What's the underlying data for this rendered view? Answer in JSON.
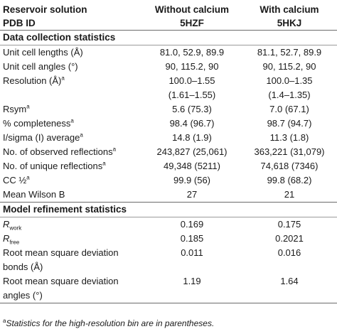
{
  "header": {
    "row1": {
      "label": "Reservoir solution",
      "col1": "Without calcium",
      "col2": "With calcium"
    },
    "row2": {
      "label": "PDB ID",
      "col1": "5HZF",
      "col2": "5HKJ"
    }
  },
  "sections": {
    "data_collection": "Data collection statistics",
    "refinement": "Model refinement statistics"
  },
  "rows": {
    "cell_lengths": {
      "label": "Unit cell lengths (Å)",
      "v1": "81.0, 52.9, 89.9",
      "v2": "81.1, 52.7, 89.9"
    },
    "cell_angles": {
      "label": "Unit cell angles (°)",
      "v1": "90, 115.2, 90",
      "v2": "90, 115.2, 90"
    },
    "resolution": {
      "label": "Resolution (Å)",
      "sup": "a",
      "v1": "100.0–1.55",
      "v1b": "(1.61–1.55)",
      "v2": "100.0–1.35",
      "v2b": "(1.4–1.35)"
    },
    "rsym": {
      "label": "Rsym",
      "sup": "a",
      "v1": "5.6 (75.3)",
      "v2": "7.0 (67.1)"
    },
    "completeness": {
      "label": "% completeness",
      "sup": "a",
      "v1": "98.4 (96.7)",
      "v2": "98.7 (94.7)"
    },
    "isigma": {
      "label": "I/sigma (I) average",
      "sup": "a",
      "v1": "14.8 (1.9)",
      "v2": "11.3 (1.8)"
    },
    "observed": {
      "label": "No. of observed reflections",
      "sup": "a",
      "v1": "243,827 (25,061)",
      "v2": "363,221 (31,079)"
    },
    "unique": {
      "label": "No. of unique reflections",
      "sup": "a",
      "v1": "49,348 (5211)",
      "v2": "74,618 (7346)"
    },
    "cc_half": {
      "label": "CC ½",
      "sup": "a",
      "v1": "99.9 (56)",
      "v2": "99.8 (68.2)"
    },
    "wilson": {
      "label": "Mean Wilson B",
      "v1": "27",
      "v2": "21"
    },
    "rwork": {
      "label": "R",
      "sub": "work",
      "v1": "0.169",
      "v2": "0.175"
    },
    "rfree": {
      "label": "R",
      "sub": "free",
      "v1": "0.185",
      "v2": "0.2021"
    },
    "rmsd_bonds": {
      "label": "Root mean square deviation",
      "label2": "bonds (Å)",
      "v1": "0.011",
      "v2": "0.016"
    },
    "rmsd_angles": {
      "label": "Root mean square deviation",
      "label2": "angles (°)",
      "v1": "1.19",
      "v2": "1.64"
    }
  },
  "footnote": {
    "sup": "a",
    "text": "Statistics for the high-resolution bin are in parentheses."
  }
}
